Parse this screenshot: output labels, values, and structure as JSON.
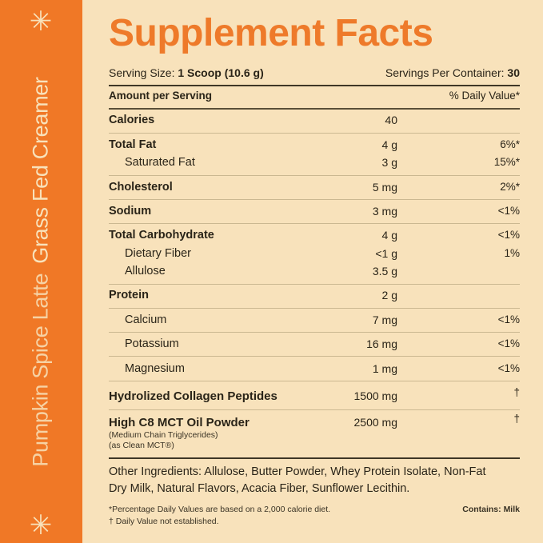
{
  "side": {
    "flavor": "Pumpkin Spice Latte",
    "product": "Grass Fed Creamer",
    "accent": "#f07826",
    "background": "#f8e2bb",
    "icon": "sparkle-icon"
  },
  "title": "Supplement Facts",
  "serving": {
    "label": "Serving Size:",
    "value": "1 Scoop (10.6 g)",
    "per_container_label": "Servings Per Container:",
    "per_container_value": "30"
  },
  "header": {
    "amount": "Amount per Serving",
    "dv": "% Daily Value*"
  },
  "rows": [
    {
      "name": "Calories",
      "amount": "40",
      "dv": "",
      "bold": true
    },
    {
      "name": "Total Fat",
      "amount": "4 g",
      "dv": "6%*",
      "bold": true
    },
    {
      "name": "Saturated Fat",
      "amount": "3 g",
      "dv": "15%*",
      "bold": false
    },
    {
      "name": "Cholesterol",
      "amount": "5 mg",
      "dv": "2%*",
      "bold": true
    },
    {
      "name": "Sodium",
      "amount": "3 mg",
      "dv": "<1%",
      "bold": true
    },
    {
      "name": "Total Carbohydrate",
      "amount": "4 g",
      "dv": "<1%",
      "bold": true
    },
    {
      "name": "Dietary Fiber",
      "amount": "<1 g",
      "dv": "1%",
      "bold": false
    },
    {
      "name": "Allulose",
      "amount": "3.5 g",
      "dv": "",
      "bold": false
    },
    {
      "name": "Protein",
      "amount": "2 g",
      "dv": "",
      "bold": true
    },
    {
      "name": "Calcium",
      "amount": "7 mg",
      "dv": "<1%",
      "bold": false
    },
    {
      "name": "Potassium",
      "amount": "16 mg",
      "dv": "<1%",
      "bold": false
    },
    {
      "name": "Magnesium",
      "amount": "1 mg",
      "dv": "<1%",
      "bold": false
    },
    {
      "name": "Hydrolized Collagen Peptides",
      "amount": "1500 mg",
      "dv": "†",
      "bold": true
    },
    {
      "name": "High C8 MCT Oil Powder",
      "amount": "2500 mg",
      "dv": "†",
      "bold": true
    }
  ],
  "mct_notes": [
    "(Medium Chain Triglycerides)",
    "(as Clean MCT®)"
  ],
  "ingredients": [
    "Other Ingredients: Allulose, Butter Powder, Whey Protein Isolate, Non-Fat",
    "Dry Milk, Natural Flavors, Acacia Fiber, Sunflower Lecithin."
  ],
  "footnotes": [
    "*Percentage Daily Values are based on a 2,000 calorie diet.",
    "† Daily Value not established."
  ],
  "contains": "Contains: Milk"
}
